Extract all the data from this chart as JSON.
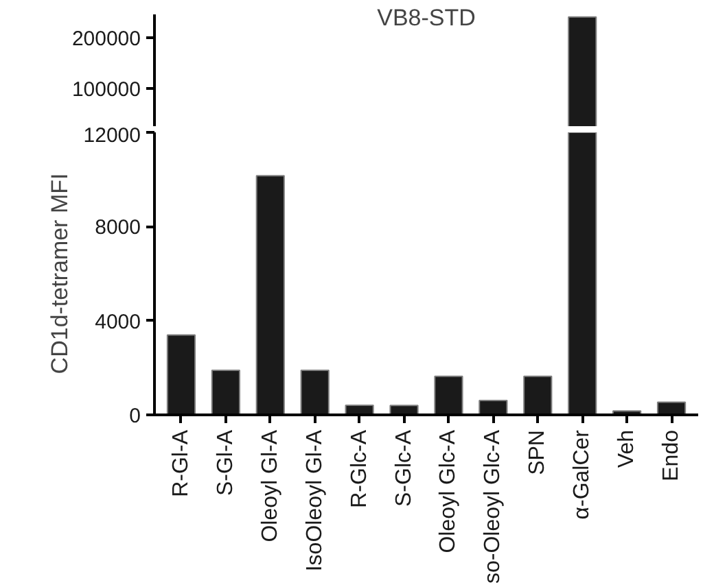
{
  "chart_data": [
    {
      "type": "bar",
      "title": "VB8-STD",
      "series": [
        {
          "color": "#1a1a1a",
          "values": [
            null,
            null,
            null,
            null,
            null,
            null,
            null,
            null,
            null,
            240000,
            null,
            null
          ]
        }
      ],
      "ylim": [
        25000,
        245000
      ],
      "yticks": [
        100000,
        200000
      ],
      "tick_labels": "y"
    },
    {
      "type": "bar",
      "ylabel": "CD1d-tetramer MFI",
      "categories": [
        "R-Gl-A",
        "S-Gl-A",
        "Oleoyl Gl-A",
        "IsoOleoyl Gl-A",
        "R-Glc-A",
        "S-Glc-A",
        "Oleoyl Glc-A",
        "so-Oleoyl Glc-A",
        "SPN",
        "α-GalCer",
        "Veh",
        "Endo"
      ],
      "series": [
        {
          "color": "#1a1a1a",
          "values": [
            3390,
            1890,
            10160,
            1890,
            410,
            400,
            1640,
            610,
            1640,
            12000,
            170,
            540
          ]
        }
      ],
      "ylim": [
        0,
        12000
      ],
      "yticks": [
        0,
        4000,
        8000,
        12000
      ]
    }
  ]
}
